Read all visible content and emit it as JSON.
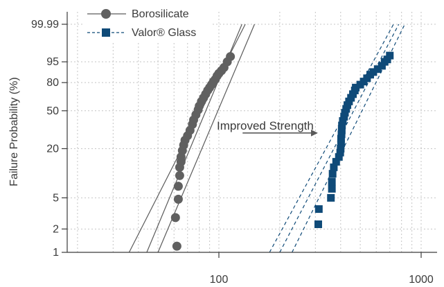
{
  "chart_data": {
    "type": "scatter",
    "ylabel": "Failure Probability (%)",
    "xlabel": "",
    "x_scale": "log",
    "y_scale": "weibull-probability",
    "xlim": [
      20,
      1000
    ],
    "ylim": [
      1,
      99.99
    ],
    "x_ticks": [
      {
        "value": 100,
        "label": "100"
      },
      {
        "value": 1000,
        "label": "1000"
      }
    ],
    "y_ticks": [
      {
        "value": 99.99,
        "label": "99.99"
      },
      {
        "value": 95,
        "label": "95"
      },
      {
        "value": 80,
        "label": "80"
      },
      {
        "value": 50,
        "label": "50"
      },
      {
        "value": 20,
        "label": "20"
      },
      {
        "value": 5,
        "label": "5"
      },
      {
        "value": 2,
        "label": "2"
      },
      {
        "value": 1,
        "label": "1"
      }
    ],
    "grid": true,
    "legend_position": "top-left",
    "annotation": {
      "text": "Improved Strength",
      "arrow_from": 131,
      "arrow_to": 306,
      "arrow_y": 30
    },
    "series": [
      {
        "name": "Borosilicate",
        "marker": "circle",
        "color": "#606060",
        "points": [
          {
            "x": 62,
            "y": 1.2
          },
          {
            "x": 61,
            "y": 2.8
          },
          {
            "x": 63,
            "y": 4.8
          },
          {
            "x": 63,
            "y": 7
          },
          {
            "x": 64,
            "y": 9.5
          },
          {
            "x": 64,
            "y": 12
          },
          {
            "x": 65,
            "y": 14
          },
          {
            "x": 65,
            "y": 16
          },
          {
            "x": 66,
            "y": 19
          },
          {
            "x": 67,
            "y": 22
          },
          {
            "x": 68,
            "y": 25
          },
          {
            "x": 70,
            "y": 28
          },
          {
            "x": 72,
            "y": 32
          },
          {
            "x": 74,
            "y": 37
          },
          {
            "x": 75,
            "y": 41
          },
          {
            "x": 77,
            "y": 46
          },
          {
            "x": 79,
            "y": 51
          },
          {
            "x": 80,
            "y": 55
          },
          {
            "x": 82,
            "y": 60
          },
          {
            "x": 84,
            "y": 64
          },
          {
            "x": 86,
            "y": 68
          },
          {
            "x": 88,
            "y": 72
          },
          {
            "x": 90,
            "y": 75
          },
          {
            "x": 92,
            "y": 78
          },
          {
            "x": 94,
            "y": 81
          },
          {
            "x": 96,
            "y": 83
          },
          {
            "x": 98,
            "y": 86
          },
          {
            "x": 100,
            "y": 88
          },
          {
            "x": 103,
            "y": 90
          },
          {
            "x": 106,
            "y": 92
          },
          {
            "x": 110,
            "y": 95
          },
          {
            "x": 114,
            "y": 97
          }
        ],
        "fit_lines": [
          {
            "x_at_1": 36,
            "x_at_99.99": 135
          },
          {
            "x_at_1": 44,
            "x_at_99.99": 130
          },
          {
            "x_at_1": 50,
            "x_at_99.99": 150
          }
        ]
      },
      {
        "name": "Valor® Glass",
        "marker": "square",
        "color": "#0f4a78",
        "points": [
          {
            "x": 310,
            "y": 2.3
          },
          {
            "x": 312,
            "y": 3.6
          },
          {
            "x": 358,
            "y": 5
          },
          {
            "x": 362,
            "y": 6.5
          },
          {
            "x": 362,
            "y": 8
          },
          {
            "x": 365,
            "y": 10
          },
          {
            "x": 370,
            "y": 12
          },
          {
            "x": 380,
            "y": 14
          },
          {
            "x": 392,
            "y": 16
          },
          {
            "x": 398,
            "y": 18
          },
          {
            "x": 400,
            "y": 20
          },
          {
            "x": 402,
            "y": 23
          },
          {
            "x": 402,
            "y": 26
          },
          {
            "x": 404,
            "y": 29
          },
          {
            "x": 405,
            "y": 32
          },
          {
            "x": 406,
            "y": 36
          },
          {
            "x": 410,
            "y": 40
          },
          {
            "x": 416,
            "y": 44
          },
          {
            "x": 420,
            "y": 48
          },
          {
            "x": 426,
            "y": 52
          },
          {
            "x": 432,
            "y": 56
          },
          {
            "x": 440,
            "y": 60
          },
          {
            "x": 450,
            "y": 64
          },
          {
            "x": 460,
            "y": 68
          },
          {
            "x": 470,
            "y": 72
          },
          {
            "x": 475,
            "y": 75
          },
          {
            "x": 500,
            "y": 78
          },
          {
            "x": 520,
            "y": 81
          },
          {
            "x": 540,
            "y": 84
          },
          {
            "x": 560,
            "y": 87
          },
          {
            "x": 580,
            "y": 89
          },
          {
            "x": 610,
            "y": 91
          },
          {
            "x": 640,
            "y": 93
          },
          {
            "x": 660,
            "y": 95
          },
          {
            "x": 680,
            "y": 96
          },
          {
            "x": 700,
            "y": 97.3
          }
        ],
        "fit_lines": [
          {
            "x_at_1": 178,
            "x_at_99.99": 730
          },
          {
            "x_at_1": 200,
            "x_at_99.99": 775
          },
          {
            "x_at_1": 230,
            "x_at_99.99": 830
          }
        ]
      }
    ]
  }
}
